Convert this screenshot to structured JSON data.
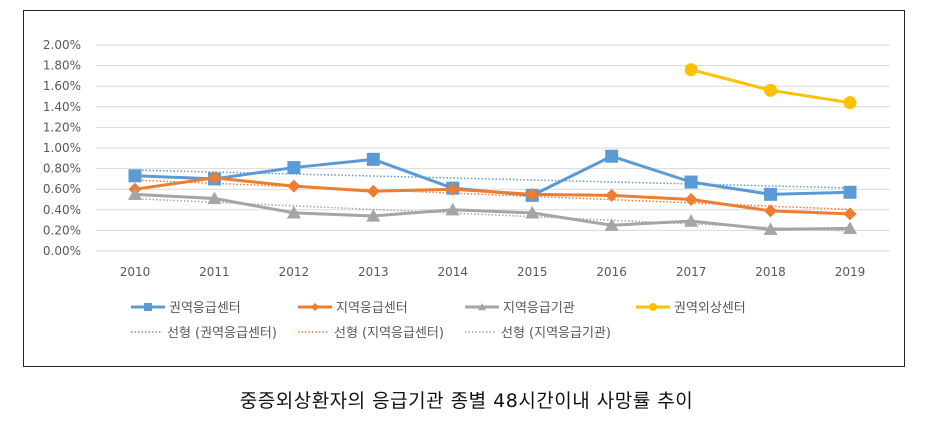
{
  "chart_data": {
    "type": "line",
    "title": "중증외상환자의 응급기관 종별 48시간이내 사망률 추이",
    "xlabel": "",
    "ylabel": "",
    "categories": [
      "2010",
      "2011",
      "2012",
      "2013",
      "2014",
      "2015",
      "2016",
      "2017",
      "2018",
      "2019"
    ],
    "ylim": [
      0,
      2.0
    ],
    "yticks": [
      "0.00%",
      "0.20%",
      "0.40%",
      "0.60%",
      "0.80%",
      "1.00%",
      "1.20%",
      "1.40%",
      "1.60%",
      "1.80%",
      "2.00%"
    ],
    "grid": true,
    "legend_position": "bottom",
    "series": [
      {
        "name": "권역응급센터",
        "color": "#5B9BD5",
        "marker": "square",
        "values": [
          0.73,
          0.7,
          0.81,
          0.89,
          0.61,
          0.54,
          0.92,
          0.67,
          0.55,
          0.57
        ]
      },
      {
        "name": "지역응급센터",
        "color": "#ED7D31",
        "marker": "diamond",
        "values": [
          0.6,
          0.71,
          0.63,
          0.58,
          0.6,
          0.55,
          0.54,
          0.5,
          0.39,
          0.36
        ]
      },
      {
        "name": "지역응급기관",
        "color": "#A5A5A5",
        "marker": "triangle",
        "values": [
          0.55,
          0.51,
          0.37,
          0.34,
          0.4,
          0.37,
          0.25,
          0.29,
          0.21,
          0.22
        ]
      },
      {
        "name": "권역외상센터",
        "color": "#FFC000",
        "marker": "circle",
        "values": [
          null,
          null,
          null,
          null,
          null,
          null,
          null,
          1.76,
          1.56,
          1.44
        ]
      }
    ],
    "trendlines": [
      {
        "name": "선형 (권역응급센터)",
        "color": "#5B9BD5",
        "of": 0
      },
      {
        "name": "선형 (지역응급센터)",
        "color": "#ED7D31",
        "of": 1
      },
      {
        "name": "선형 (지역응급기관)",
        "color": "#A5A5A5",
        "of": 2
      }
    ]
  }
}
